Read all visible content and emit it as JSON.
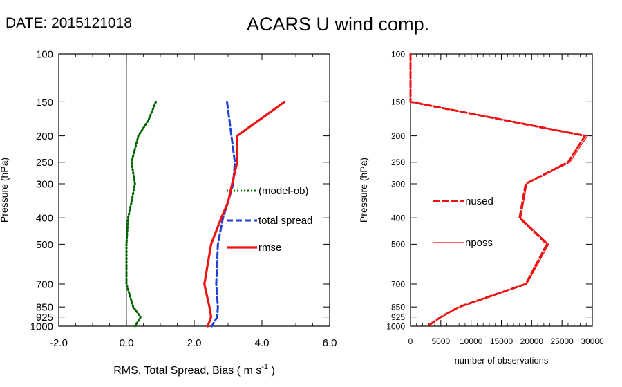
{
  "header": {
    "date": "DATE: 2015121018",
    "title": "ACARS U wind comp."
  },
  "chart_data": [
    {
      "type": "line",
      "title": "",
      "xlabel": "RMS, Total Spread, Bias ( m s-1 )",
      "xlabel_main": "RMS, Total Spread, Bias ( m s",
      "xlabel_sup": "-1",
      "xlabel_end": " )",
      "ylabel": "Pressure (hPa)",
      "xlim": [
        -2.0,
        6.0
      ],
      "ylim": [
        1000,
        100
      ],
      "yscale": "log",
      "grid": false,
      "xticks": [
        -2.0,
        0.0,
        2.0,
        4.0,
        6.0
      ],
      "xtick_labels": [
        "-2.0",
        "0.0",
        "2.0",
        "4.0",
        "6.0"
      ],
      "yticks": [
        100,
        150,
        200,
        250,
        300,
        400,
        500,
        700,
        850,
        925,
        1000
      ],
      "ytick_labels": [
        "100",
        "150",
        "200",
        "250",
        "300",
        "400",
        "500",
        "700",
        "850",
        "925",
        "1000"
      ],
      "zero_line": 0.0,
      "legend_placement": "right-middle",
      "series": [
        {
          "name": "(model-ob)",
          "color": "#006400",
          "dash": "dotted",
          "points": [
            [
              0.87,
              150
            ],
            [
              0.65,
              175
            ],
            [
              0.35,
              200
            ],
            [
              0.15,
              250
            ],
            [
              0.25,
              300
            ],
            [
              0.15,
              350
            ],
            [
              0.05,
              400
            ],
            [
              0.0,
              500
            ],
            [
              0.0,
              700
            ],
            [
              0.2,
              850
            ],
            [
              0.42,
              925
            ],
            [
              0.25,
              1000
            ]
          ]
        },
        {
          "name": "total spread",
          "color": "#1f3fd6",
          "dash": "dashed",
          "points": [
            [
              2.97,
              150
            ],
            [
              3.1,
              200
            ],
            [
              3.2,
              250
            ],
            [
              3.15,
              300
            ],
            [
              3.0,
              350
            ],
            [
              2.85,
              400
            ],
            [
              2.7,
              500
            ],
            [
              2.65,
              700
            ],
            [
              2.7,
              850
            ],
            [
              2.68,
              925
            ],
            [
              2.52,
              1000
            ]
          ]
        },
        {
          "name": "rmse",
          "color": "#ee1111",
          "dash": "solid",
          "points": [
            [
              4.67,
              150
            ],
            [
              3.27,
              200
            ],
            [
              3.27,
              250
            ],
            [
              3.12,
              300
            ],
            [
              3.0,
              350
            ],
            [
              2.8,
              400
            ],
            [
              2.5,
              500
            ],
            [
              2.3,
              700
            ],
            [
              2.45,
              850
            ],
            [
              2.5,
              925
            ],
            [
              2.4,
              1000
            ]
          ]
        }
      ]
    },
    {
      "type": "line",
      "title": "",
      "xlabel": "number of observations",
      "ylabel": "Pressure (hPa)",
      "xlim": [
        0,
        30000
      ],
      "ylim": [
        1000,
        100
      ],
      "yscale": "log",
      "grid": false,
      "xticks": [
        0,
        5000,
        10000,
        15000,
        20000,
        25000,
        30000
      ],
      "xtick_labels": [
        "0",
        "5000",
        "10000",
        "15000",
        "20000",
        "25000",
        "30000"
      ],
      "yticks": [
        100,
        150,
        200,
        250,
        300,
        400,
        500,
        700,
        850,
        925,
        1000
      ],
      "ytick_labels": [
        "100",
        "150",
        "200",
        "250",
        "300",
        "400",
        "500",
        "700",
        "850",
        "925",
        "1000"
      ],
      "legend_placement": "left-middle",
      "series": [
        {
          "name": "nused",
          "color": "#ee1111",
          "dash": "dashed",
          "points": [
            [
              0,
              100
            ],
            [
              0,
              150
            ],
            [
              28800,
              200
            ],
            [
              26000,
              250
            ],
            [
              19000,
              300
            ],
            [
              18000,
              400
            ],
            [
              22500,
              500
            ],
            [
              19000,
              700
            ],
            [
              8000,
              850
            ],
            [
              5000,
              925
            ],
            [
              2800,
              1000
            ]
          ]
        },
        {
          "name": "nposs",
          "color": "#ee1111",
          "dash": "solid-thin",
          "points": [
            [
              0,
              100
            ],
            [
              0,
              150
            ],
            [
              29200,
              200
            ],
            [
              26300,
              250
            ],
            [
              19200,
              300
            ],
            [
              18200,
              400
            ],
            [
              22800,
              500
            ],
            [
              19200,
              700
            ],
            [
              8200,
              850
            ],
            [
              5100,
              925
            ],
            [
              2900,
              1000
            ]
          ]
        }
      ]
    }
  ]
}
